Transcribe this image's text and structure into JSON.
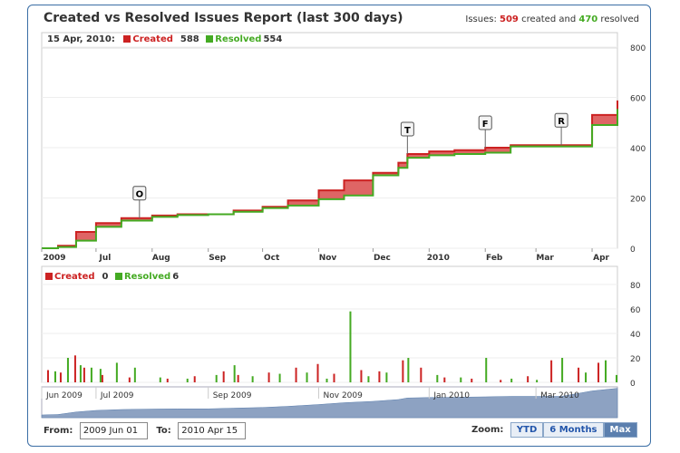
{
  "title": "Created vs Resolved Issues Report (last 300 days)",
  "summary": {
    "prefix": "Issues:",
    "created": "509",
    "middle": "created and",
    "resolved": "470",
    "suffix": "resolved"
  },
  "legend_top": {
    "date": "15 Apr, 2010:",
    "created_label": "Created",
    "created_value": "588",
    "resolved_label": "Resolved",
    "resolved_value": "554"
  },
  "legend_bottom": {
    "created_label": "Created",
    "created_value": "0",
    "resolved_label": "Resolved",
    "resolved_value": "6"
  },
  "colors": {
    "created": "#cc2222",
    "resolved": "#44aa22",
    "accent": "#3a6ea5"
  },
  "controls": {
    "from_label": "From:",
    "from_value": "2009 Jun 01",
    "to_label": "To:",
    "to_value": "2010 Apr 15",
    "zoom_label": "Zoom:",
    "zoom_options": [
      "YTD",
      "6 Months",
      "Max"
    ],
    "zoom_selected": "Max"
  },
  "chart_data": [
    {
      "type": "area",
      "title": "",
      "x_ticks": [
        "2009",
        "Jul",
        "Aug",
        "Sep",
        "Oct",
        "Nov",
        "Dec",
        "2010",
        "Feb",
        "Mar",
        "Apr"
      ],
      "y_ticks": [
        0,
        200,
        400,
        600,
        800
      ],
      "ylim": [
        0,
        800
      ],
      "x_range": [
        "2009-06-01",
        "2010-04-15"
      ],
      "series": [
        {
          "name": "Created",
          "x": [
            "2009-06-01",
            "2009-06-10",
            "2009-06-20",
            "2009-07-01",
            "2009-07-15",
            "2009-08-01",
            "2009-08-15",
            "2009-09-01",
            "2009-09-15",
            "2009-10-01",
            "2009-10-15",
            "2009-11-01",
            "2009-11-15",
            "2009-12-01",
            "2009-12-15",
            "2009-12-20",
            "2010-01-01",
            "2010-01-15",
            "2010-02-01",
            "2010-02-15",
            "2010-03-01",
            "2010-03-15",
            "2010-04-01",
            "2010-04-15"
          ],
          "values": [
            0,
            10,
            65,
            100,
            120,
            130,
            135,
            135,
            150,
            165,
            190,
            230,
            270,
            300,
            340,
            375,
            385,
            390,
            400,
            410,
            410,
            410,
            530,
            588
          ]
        },
        {
          "name": "Resolved",
          "x": [
            "2009-06-01",
            "2009-06-10",
            "2009-06-20",
            "2009-07-01",
            "2009-07-15",
            "2009-08-01",
            "2009-08-15",
            "2009-09-01",
            "2009-09-15",
            "2009-10-01",
            "2009-10-15",
            "2009-11-01",
            "2009-11-15",
            "2009-12-01",
            "2009-12-15",
            "2009-12-20",
            "2010-01-01",
            "2010-01-15",
            "2010-02-01",
            "2010-02-15",
            "2010-03-01",
            "2010-03-15",
            "2010-04-01",
            "2010-04-15"
          ],
          "values": [
            0,
            5,
            30,
            85,
            110,
            125,
            132,
            135,
            145,
            160,
            170,
            195,
            210,
            290,
            320,
            360,
            370,
            375,
            380,
            405,
            405,
            405,
            490,
            554
          ]
        }
      ],
      "flags": [
        {
          "label": "O",
          "date": "2009-07-25"
        },
        {
          "label": "T",
          "date": "2009-12-20"
        },
        {
          "label": "F",
          "date": "2010-02-01"
        },
        {
          "label": "R",
          "date": "2010-03-15"
        }
      ]
    },
    {
      "type": "bar",
      "title": "",
      "y_ticks": [
        0,
        20,
        40,
        60,
        80
      ],
      "ylim": [
        0,
        80
      ],
      "series": [
        {
          "name": "Created",
          "x": [
            "2009-06-05",
            "2009-06-12",
            "2009-06-20",
            "2009-06-25",
            "2009-07-05",
            "2009-07-20",
            "2009-08-10",
            "2009-08-25",
            "2009-09-10",
            "2009-09-18",
            "2009-10-05",
            "2009-10-20",
            "2009-11-01",
            "2009-11-10",
            "2009-11-25",
            "2009-12-05",
            "2009-12-18",
            "2009-12-28",
            "2010-01-10",
            "2010-01-25",
            "2010-02-10",
            "2010-02-25",
            "2010-03-10",
            "2010-03-25",
            "2010-04-05",
            "2010-04-15"
          ],
          "values": [
            10,
            8,
            22,
            12,
            6,
            4,
            3,
            5,
            9,
            6,
            8,
            12,
            15,
            7,
            10,
            9,
            18,
            12,
            4,
            3,
            2,
            5,
            18,
            12,
            16,
            0
          ]
        },
        {
          "name": "Resolved",
          "x": [
            "2009-06-08",
            "2009-06-15",
            "2009-06-22",
            "2009-06-28",
            "2009-07-03",
            "2009-07-12",
            "2009-07-22",
            "2009-08-05",
            "2009-08-20",
            "2009-09-05",
            "2009-09-15",
            "2009-09-25",
            "2009-10-10",
            "2009-10-25",
            "2009-11-05",
            "2009-11-18",
            "2009-11-28",
            "2009-12-08",
            "2009-12-20",
            "2010-01-05",
            "2010-01-18",
            "2010-02-01",
            "2010-02-15",
            "2010-03-01",
            "2010-03-15",
            "2010-03-28",
            "2010-04-08",
            "2010-04-14"
          ],
          "values": [
            9,
            20,
            14,
            12,
            11,
            16,
            12,
            4,
            3,
            6,
            14,
            5,
            7,
            8,
            3,
            58,
            5,
            8,
            20,
            6,
            4,
            20,
            3,
            2,
            20,
            8,
            18,
            6
          ]
        }
      ]
    }
  ],
  "navigator": {
    "labels": [
      "Jun 2009",
      "Jul 2009",
      "Sep 2009",
      "Nov 2009",
      "Jan 2010",
      "Mar 2010"
    ]
  }
}
